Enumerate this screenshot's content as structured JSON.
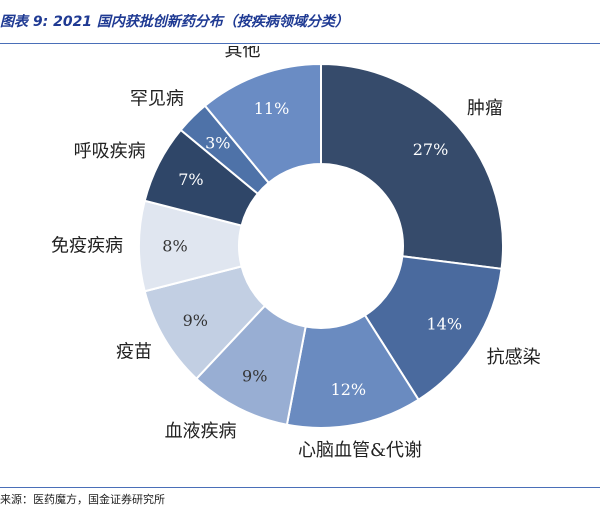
{
  "figure": {
    "title": "图表 9:  2021 国内获批创新药分布（按疾病领域分类）",
    "source": "来源：医药魔方，国金证券研究所"
  },
  "chart_data": {
    "type": "pie",
    "donut": true,
    "categories": [
      "肿瘤",
      "抗感染",
      "心脑血管&代谢",
      "血液疾病",
      "疫苗",
      "免疫疾病",
      "呼吸疾病",
      "罕见病",
      "其他"
    ],
    "values": [
      27,
      14,
      12,
      9,
      9,
      8,
      7,
      3,
      11
    ],
    "value_labels": [
      "27%",
      "14%",
      "12%",
      "9%",
      "9%",
      "8%",
      "7%",
      "3%",
      "11%"
    ],
    "colors": [
      "#364b6b",
      "#4a6a9e",
      "#6a8bc0",
      "#98aed3",
      "#c2cfe3",
      "#e0e6f0",
      "#2f4668",
      "#4e72a8",
      "#6a8cc4"
    ],
    "label_colors": [
      "#ffffff",
      "#ffffff",
      "#ffffff",
      "#333333",
      "#333333",
      "#333333",
      "#ffffff",
      "#ffffff",
      "#ffffff"
    ],
    "legend": "none"
  }
}
